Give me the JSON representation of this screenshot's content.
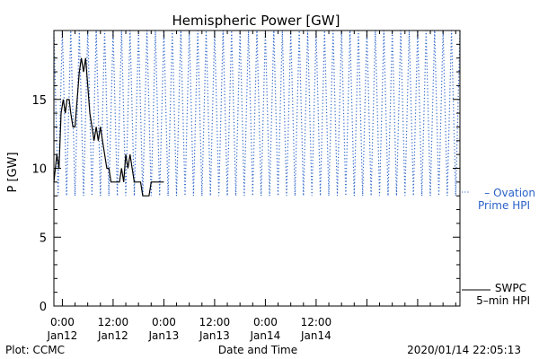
{
  "footer": {
    "left": "Plot: CCMC",
    "center": "Date and Time",
    "right": "2020/01/14 22:05:13"
  },
  "colors": {
    "axes": "#000000",
    "swpc": "#000000",
    "ovation": "#2a62c9"
  },
  "chart_data": {
    "type": "line",
    "title": "Hemispheric Power [GW]",
    "ylabel": "P [GW]",
    "xlabel": "Date and Time",
    "ylim": [
      0,
      20
    ],
    "xlim_hours": [
      -2,
      94
    ],
    "yticks": [
      0,
      5,
      10,
      15
    ],
    "xticks": [
      {
        "hour": 0,
        "time": "0:00",
        "date": "Jan12"
      },
      {
        "hour": 12,
        "time": "12:00",
        "date": "Jan12"
      },
      {
        "hour": 24,
        "time": "0:00",
        "date": "Jan13"
      },
      {
        "hour": 36,
        "time": "12:00",
        "date": "Jan13"
      },
      {
        "hour": 48,
        "time": "0:00",
        "date": "Jan14"
      },
      {
        "hour": 60,
        "time": "12:00",
        "date": "Jan14"
      }
    ],
    "series": [
      {
        "name": "SWPC 5-min HPI",
        "legend_lines": [
          "SWPC",
          "5–min HPI"
        ],
        "style": "solid",
        "points": [
          [
            -2.0,
            9
          ],
          [
            -1.3,
            11
          ],
          [
            -0.8,
            10
          ],
          [
            -0.3,
            14
          ],
          [
            0.2,
            15
          ],
          [
            0.7,
            14
          ],
          [
            1.1,
            15
          ],
          [
            1.6,
            15
          ],
          [
            2.0,
            14
          ],
          [
            2.5,
            13
          ],
          [
            3.0,
            13
          ],
          [
            3.5,
            15
          ],
          [
            4.0,
            17
          ],
          [
            4.5,
            18
          ],
          [
            5.0,
            17
          ],
          [
            5.5,
            18
          ],
          [
            6.0,
            16
          ],
          [
            6.5,
            14
          ],
          [
            7.0,
            13
          ],
          [
            7.5,
            12
          ],
          [
            8.0,
            13
          ],
          [
            8.5,
            12
          ],
          [
            9.0,
            13
          ],
          [
            9.5,
            12
          ],
          [
            10.0,
            11
          ],
          [
            10.5,
            10
          ],
          [
            11.0,
            10
          ],
          [
            11.5,
            9
          ],
          [
            12.0,
            9
          ],
          [
            12.5,
            9
          ],
          [
            13.0,
            9
          ],
          [
            13.5,
            9
          ],
          [
            14.0,
            10
          ],
          [
            14.5,
            9
          ],
          [
            15.0,
            11
          ],
          [
            15.5,
            10
          ],
          [
            16.0,
            11
          ],
          [
            16.5,
            10
          ],
          [
            17.0,
            9
          ],
          [
            17.5,
            9
          ],
          [
            18.0,
            9
          ],
          [
            18.5,
            9
          ],
          [
            19.0,
            8
          ],
          [
            19.5,
            8
          ],
          [
            20.0,
            8
          ],
          [
            20.5,
            8
          ],
          [
            21.0,
            9
          ],
          [
            21.5,
            9
          ],
          [
            22.0,
            9
          ],
          [
            22.5,
            9
          ],
          [
            23.0,
            9
          ],
          [
            23.5,
            9
          ],
          [
            24.0,
            9
          ]
        ]
      },
      {
        "name": "Ovation Prime HPI",
        "legend_lines": [
          "– Ovation",
          "Prime HPI"
        ],
        "style": "dotted",
        "points": [
          [
            -2.0,
            20
          ],
          [
            -1.0,
            8
          ],
          [
            0.0,
            20
          ],
          [
            1.0,
            8
          ],
          [
            2.0,
            20
          ],
          [
            3.0,
            8
          ],
          [
            4.0,
            20
          ],
          [
            5.0,
            8
          ],
          [
            6.0,
            20
          ],
          [
            7.0,
            8
          ],
          [
            8.0,
            20
          ],
          [
            9.0,
            8
          ],
          [
            10.0,
            20
          ],
          [
            11.0,
            8
          ],
          [
            12.0,
            20
          ],
          [
            13.0,
            8
          ],
          [
            14.0,
            20
          ],
          [
            15.0,
            8
          ],
          [
            16.0,
            20
          ],
          [
            17.0,
            8
          ],
          [
            18.0,
            20
          ],
          [
            19.0,
            8
          ],
          [
            20.0,
            20
          ],
          [
            21.0,
            8
          ],
          [
            22.0,
            20
          ],
          [
            23.0,
            8
          ],
          [
            24.0,
            20
          ],
          [
            25.0,
            8
          ],
          [
            26.0,
            20
          ],
          [
            27.0,
            8
          ],
          [
            28.0,
            20
          ],
          [
            29.0,
            8
          ],
          [
            30.0,
            20
          ],
          [
            31.0,
            8
          ],
          [
            32.0,
            20
          ],
          [
            33.0,
            8
          ],
          [
            34.0,
            20
          ],
          [
            35.0,
            8
          ],
          [
            36.0,
            20
          ],
          [
            37.0,
            8
          ],
          [
            38.0,
            20
          ],
          [
            39.0,
            8
          ],
          [
            40.0,
            20
          ],
          [
            41.0,
            8
          ],
          [
            42.0,
            20
          ],
          [
            43.0,
            8
          ],
          [
            44.0,
            20
          ],
          [
            45.0,
            8
          ],
          [
            46.0,
            20
          ],
          [
            47.0,
            8
          ],
          [
            48.0,
            20
          ],
          [
            49.0,
            8
          ],
          [
            50.0,
            20
          ],
          [
            51.0,
            8
          ],
          [
            52.0,
            20
          ],
          [
            53.0,
            8
          ],
          [
            54.0,
            20
          ],
          [
            55.0,
            8
          ],
          [
            56.0,
            20
          ],
          [
            57.0,
            8
          ],
          [
            58.0,
            20
          ],
          [
            59.0,
            8
          ],
          [
            60.0,
            20
          ],
          [
            61.0,
            8
          ],
          [
            62.0,
            20
          ],
          [
            63.0,
            8
          ],
          [
            64.0,
            20
          ],
          [
            65.0,
            8
          ],
          [
            66.0,
            20
          ],
          [
            67.0,
            8
          ],
          [
            68.0,
            20
          ],
          [
            69.0,
            8
          ],
          [
            70.0,
            20
          ],
          [
            71.0,
            8
          ],
          [
            72.0,
            20
          ],
          [
            73.0,
            8
          ],
          [
            74.0,
            20
          ],
          [
            75.0,
            8
          ],
          [
            76.0,
            20
          ],
          [
            77.0,
            8
          ],
          [
            78.0,
            20
          ],
          [
            79.0,
            8
          ],
          [
            80.0,
            20
          ],
          [
            81.0,
            8
          ],
          [
            82.0,
            20
          ],
          [
            83.0,
            8
          ],
          [
            84.0,
            20
          ],
          [
            85.0,
            8
          ],
          [
            86.0,
            20
          ],
          [
            87.0,
            8
          ],
          [
            88.0,
            20
          ],
          [
            89.0,
            8
          ],
          [
            90.0,
            20
          ],
          [
            91.0,
            8
          ],
          [
            92.0,
            20
          ],
          [
            93.0,
            8
          ],
          [
            94.0,
            20
          ]
        ]
      }
    ]
  }
}
